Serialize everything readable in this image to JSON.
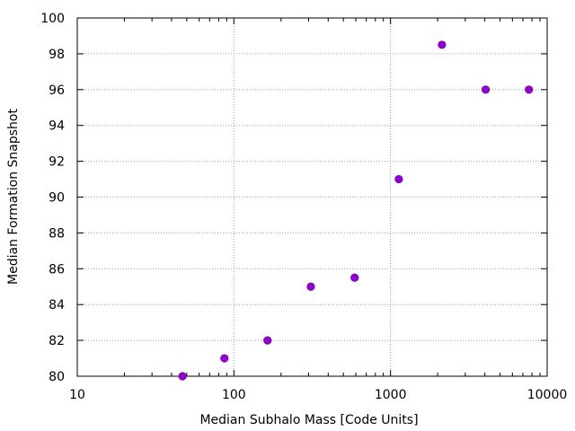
{
  "chart_data": {
    "type": "scatter",
    "title": "",
    "xlabel": "Median Subhalo Mass [Code Units]",
    "ylabel": "Median Formation Snapshot",
    "xscale": "log",
    "xlim": [
      10,
      10000
    ],
    "ylim": [
      80,
      100
    ],
    "grid": true,
    "legend": "none",
    "x_ticks": [
      10,
      100,
      1000,
      10000
    ],
    "x_tick_labels": [
      "10",
      "100",
      "1000",
      "10000"
    ],
    "y_ticks": [
      80,
      82,
      84,
      86,
      88,
      90,
      92,
      94,
      96,
      98,
      100
    ],
    "y_tick_labels": [
      "80",
      "82",
      "84",
      "86",
      "88",
      "90",
      "92",
      "94",
      "96",
      "98",
      "100"
    ],
    "point_color": "#9400d3",
    "series": [
      {
        "x": [
          47,
          87,
          164,
          310,
          590,
          1130,
          2130,
          4050,
          7650
        ],
        "y": [
          80,
          81,
          82,
          85,
          85.5,
          91,
          98.5,
          96,
          96
        ]
      }
    ]
  }
}
